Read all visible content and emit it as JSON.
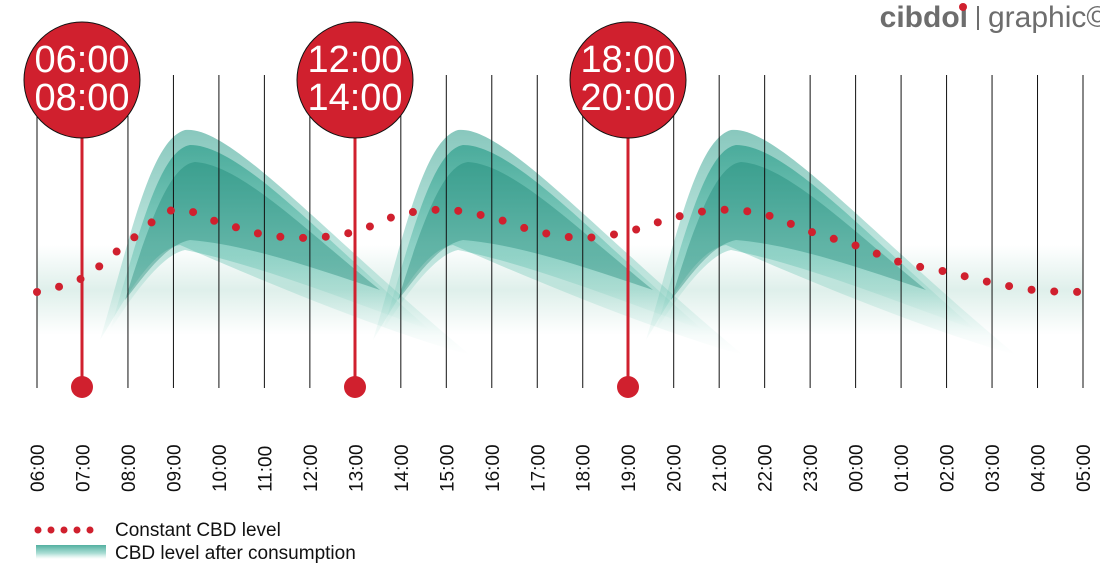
{
  "brand": {
    "name": "cibdol",
    "tag": "graphic©"
  },
  "chart_data": {
    "type": "line",
    "categories": [
      "06:00",
      "07:00",
      "08:00",
      "09:00",
      "10:00",
      "11:00",
      "12:00",
      "13:00",
      "14:00",
      "15:00",
      "16:00",
      "17:00",
      "18:00",
      "19:00",
      "20:00",
      "21:00",
      "22:00",
      "23:00",
      "00:00",
      "01:00",
      "02:00",
      "03:00",
      "04:00",
      "05:00"
    ],
    "series": [
      {
        "name": "Constant CBD level",
        "color": "#d0202e",
        "values": [
          30,
          34.5,
          46,
          56.5,
          52.5,
          48.5,
          47.5,
          49.5,
          55,
          56.5,
          54,
          49.5,
          47.5,
          49.5,
          54,
          56.5,
          55,
          49.5,
          45,
          39.5,
          36.5,
          33,
          30.5,
          30
        ]
      }
    ],
    "ylim": [
      0,
      100
    ],
    "consumption_label": "CBD level after consumption",
    "doses": [
      [
        "06:00",
        "08:00"
      ],
      [
        "12:00",
        "14:00"
      ],
      [
        "18:00",
        "20:00"
      ]
    ]
  }
}
